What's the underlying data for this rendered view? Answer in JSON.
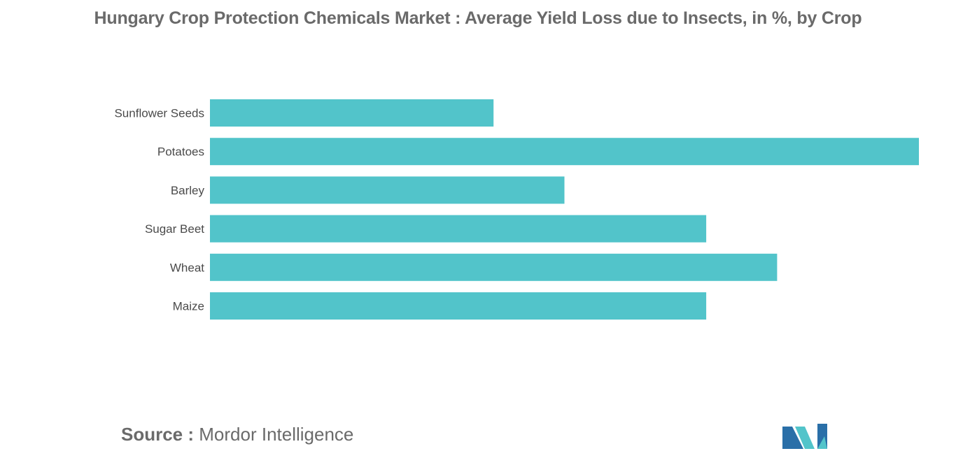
{
  "chart_data": {
    "type": "bar",
    "orientation": "horizontal",
    "title": "Hungary Crop Protection Chemicals Market : Average Yield Loss due to Insects, in %, by Crop",
    "categories": [
      "Sunflower Seeds",
      "Potatoes",
      "Barley",
      "Sugar Beet",
      "Wheat",
      "Maize"
    ],
    "values": [
      4,
      10,
      5,
      7,
      8,
      7
    ],
    "xlim": [
      0,
      10
    ],
    "grid": false,
    "legend": "none",
    "bar_color": "#52c4ca"
  },
  "source": {
    "label": "Source :",
    "name": "Mordor Intelligence"
  },
  "logo": {
    "icon": "mordor-intelligence-logo-icon",
    "colors": [
      "#2a6fa8",
      "#52c4ca"
    ]
  }
}
